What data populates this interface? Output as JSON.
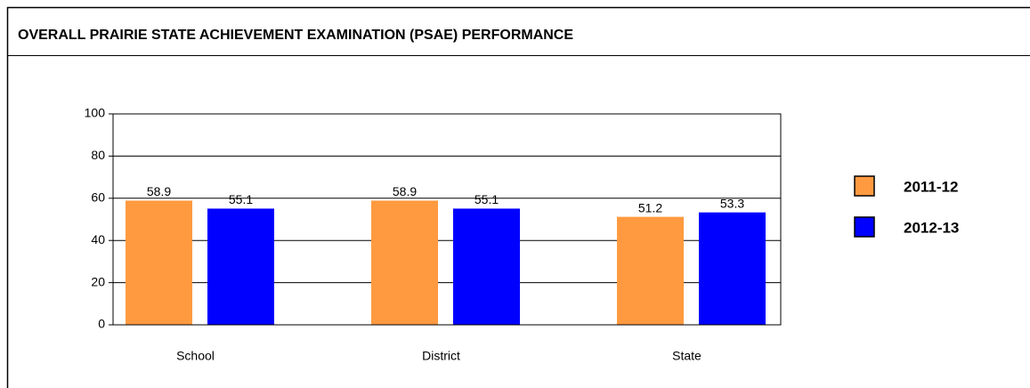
{
  "chart_data": {
    "type": "bar",
    "title": "OVERALL PRAIRIE STATE ACHIEVEMENT EXAMINATION (PSAE) PERFORMANCE",
    "categories": [
      "School",
      "District",
      "State"
    ],
    "series": [
      {
        "name": "2011-12",
        "color": "#ff9a40",
        "values": [
          58.9,
          58.9,
          51.2
        ]
      },
      {
        "name": "2012-13",
        "color": "#0000ff",
        "values": [
          55.1,
          55.1,
          53.3
        ]
      }
    ],
    "ylim": [
      0,
      100
    ],
    "yticks": [
      0,
      20,
      40,
      60,
      80,
      100
    ],
    "grid": true,
    "legend": "right"
  }
}
